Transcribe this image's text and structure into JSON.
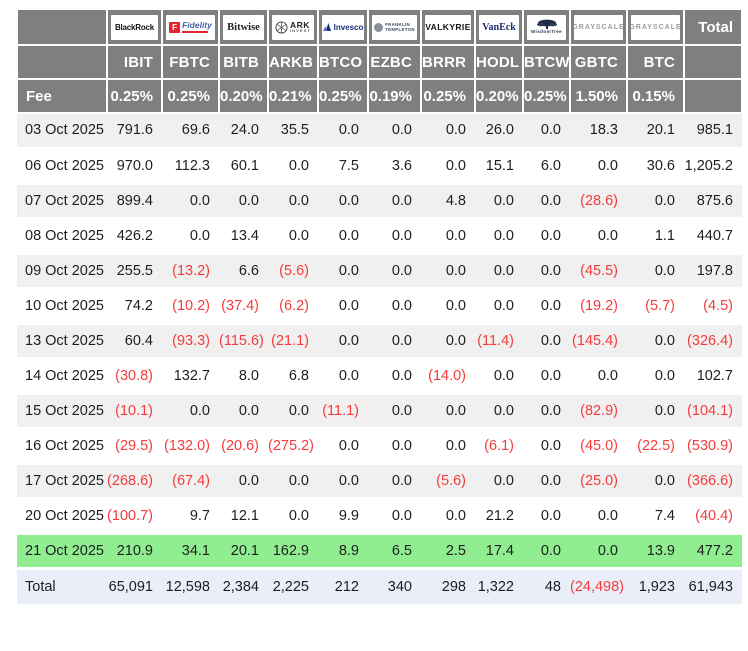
{
  "colors": {
    "header_bg": "#7f7f7f",
    "row_alt_bg": "#f0f0f0",
    "highlight_green": "#90ee90",
    "total_row_bg": "#e9eef9",
    "negative_red": "#f53b3b",
    "fidelity_red": "#e3262e",
    "grayscale_gray": "#9b9b9b"
  },
  "header": {
    "total_label": "Total",
    "providers": [
      {
        "id": "blackrock",
        "label": "BlackRock"
      },
      {
        "id": "fidelity",
        "label": "Fidelity",
        "badge": "F"
      },
      {
        "id": "bitwise",
        "label": "Bitwise"
      },
      {
        "id": "ark-invest",
        "label": "ARK",
        "sub": "INVEST"
      },
      {
        "id": "invesco",
        "label": "Invesco"
      },
      {
        "id": "franklin-templeton",
        "label": "FRANKLIN",
        "sub": "TEMPLETON"
      },
      {
        "id": "valkyrie",
        "label": "VALKYRIE"
      },
      {
        "id": "vaneck",
        "label": "VanEck"
      },
      {
        "id": "wisdomtree",
        "label": "WisdomTree"
      },
      {
        "id": "grayscale",
        "label": "GRAYSCALE"
      },
      {
        "id": "grayscale-mini",
        "label": "GRAYSCALE"
      }
    ],
    "tickers": [
      "IBIT",
      "FBTC",
      "BITB",
      "ARKB",
      "BTCO",
      "EZBC",
      "BRRR",
      "HODL",
      "BTCW",
      "GBTC",
      "BTC"
    ]
  },
  "fee": {
    "label": "Fee",
    "values": [
      "0.25%",
      "0.25%",
      "0.20%",
      "0.21%",
      "0.25%",
      "0.19%",
      "0.25%",
      "0.20%",
      "0.25%",
      "1.50%",
      "0.15%"
    ]
  },
  "rows": [
    {
      "date": "03 Oct 2025",
      "values": [
        "791.6",
        "69.6",
        "24.0",
        "35.5",
        "0.0",
        "0.0",
        "0.0",
        "26.0",
        "0.0",
        "18.3",
        "20.1",
        "985.1"
      ]
    },
    {
      "date": "06 Oct 2025",
      "values": [
        "970.0",
        "112.3",
        "60.1",
        "0.0",
        "7.5",
        "3.6",
        "0.0",
        "15.1",
        "6.0",
        "0.0",
        "30.6",
        "1,205.2"
      ]
    },
    {
      "date": "07 Oct 2025",
      "values": [
        "899.4",
        "0.0",
        "0.0",
        "0.0",
        "0.0",
        "0.0",
        "4.8",
        "0.0",
        "0.0",
        "(28.6)",
        "0.0",
        "875.6"
      ]
    },
    {
      "date": "08 Oct 2025",
      "values": [
        "426.2",
        "0.0",
        "13.4",
        "0.0",
        "0.0",
        "0.0",
        "0.0",
        "0.0",
        "0.0",
        "0.0",
        "1.1",
        "440.7"
      ]
    },
    {
      "date": "09 Oct 2025",
      "values": [
        "255.5",
        "(13.2)",
        "6.6",
        "(5.6)",
        "0.0",
        "0.0",
        "0.0",
        "0.0",
        "0.0",
        "(45.5)",
        "0.0",
        "197.8"
      ]
    },
    {
      "date": "10 Oct 2025",
      "values": [
        "74.2",
        "(10.2)",
        "(37.4)",
        "(6.2)",
        "0.0",
        "0.0",
        "0.0",
        "0.0",
        "0.0",
        "(19.2)",
        "(5.7)",
        "(4.5)"
      ]
    },
    {
      "date": "13 Oct 2025",
      "values": [
        "60.4",
        "(93.3)",
        "(115.6)",
        "(21.1)",
        "0.0",
        "0.0",
        "0.0",
        "(11.4)",
        "0.0",
        "(145.4)",
        "0.0",
        "(326.4)"
      ]
    },
    {
      "date": "14 Oct 2025",
      "values": [
        "(30.8)",
        "132.7",
        "8.0",
        "6.8",
        "0.0",
        "0.0",
        "(14.0)",
        "0.0",
        "0.0",
        "0.0",
        "0.0",
        "102.7"
      ]
    },
    {
      "date": "15 Oct 2025",
      "values": [
        "(10.1)",
        "0.0",
        "0.0",
        "0.0",
        "(11.1)",
        "0.0",
        "0.0",
        "0.0",
        "0.0",
        "(82.9)",
        "0.0",
        "(104.1)"
      ]
    },
    {
      "date": "16 Oct 2025",
      "values": [
        "(29.5)",
        "(132.0)",
        "(20.6)",
        "(275.2)",
        "0.0",
        "0.0",
        "0.0",
        "(6.1)",
        "0.0",
        "(45.0)",
        "(22.5)",
        "(530.9)"
      ]
    },
    {
      "date": "17 Oct 2025",
      "values": [
        "(268.6)",
        "(67.4)",
        "0.0",
        "0.0",
        "0.0",
        "0.0",
        "(5.6)",
        "0.0",
        "0.0",
        "(25.0)",
        "0.0",
        "(366.6)"
      ]
    },
    {
      "date": "20 Oct 2025",
      "values": [
        "(100.7)",
        "9.7",
        "12.1",
        "0.0",
        "9.9",
        "0.0",
        "0.0",
        "21.2",
        "0.0",
        "0.0",
        "7.4",
        "(40.4)"
      ]
    },
    {
      "date": "21 Oct 2025",
      "highlight": true,
      "values": [
        "210.9",
        "34.1",
        "20.1",
        "162.9",
        "8.9",
        "6.5",
        "2.5",
        "17.4",
        "0.0",
        "0.0",
        "13.9",
        "477.2"
      ]
    }
  ],
  "total_row": {
    "label": "Total",
    "values": [
      "65,091",
      "12,598",
      "2,384",
      "2,225",
      "212",
      "340",
      "298",
      "1,322",
      "48",
      "(24,498)",
      "1,923",
      "61,943"
    ]
  }
}
